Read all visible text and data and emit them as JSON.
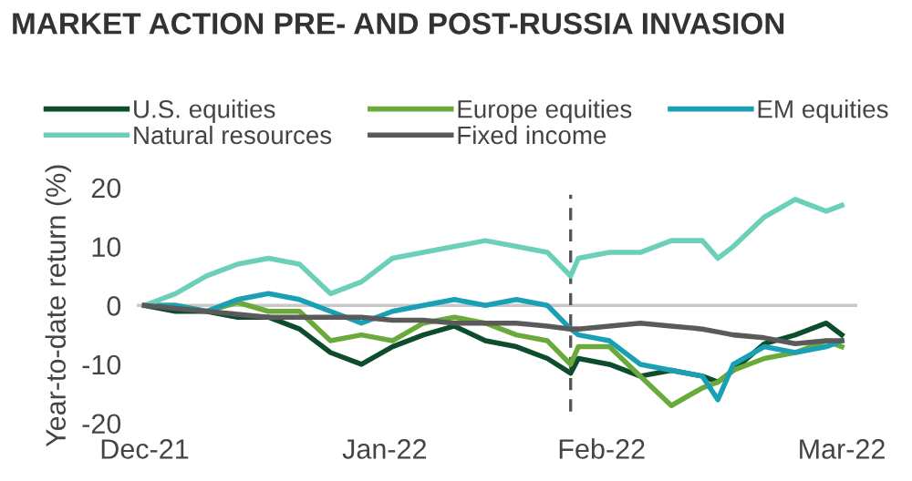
{
  "chart_data": {
    "type": "line",
    "title": "MARKET ACTION PRE- AND POST-RUSSIA INVASION",
    "ylabel": "Year-to-date return (%)",
    "x": [
      "2021-12-31",
      "2022-01-04",
      "2022-01-08",
      "2022-01-12",
      "2022-01-16",
      "2022-01-20",
      "2022-01-24",
      "2022-01-28",
      "2022-02-01",
      "2022-02-05",
      "2022-02-09",
      "2022-02-13",
      "2022-02-17",
      "2022-02-21",
      "2022-02-24",
      "2022-02-25",
      "2022-03-01",
      "2022-03-05",
      "2022-03-09",
      "2022-03-13",
      "2022-03-15",
      "2022-03-17",
      "2022-03-21",
      "2022-03-25",
      "2022-03-29",
      "2022-03-31"
    ],
    "series": [
      {
        "name": "U.S. equities",
        "color": "#0d4d2e",
        "values": [
          0,
          -1,
          -1,
          -2,
          -2,
          -4,
          -8,
          -10,
          -7,
          -5,
          -3.5,
          -6,
          -7,
          -9,
          -11.5,
          -9,
          -10,
          -12,
          -11,
          -12,
          -13,
          -11,
          -6.5,
          -5,
          -3,
          -5
        ]
      },
      {
        "name": "Europe equities",
        "color": "#6aaa3a",
        "values": [
          0,
          0,
          -1,
          0.5,
          -1,
          -1,
          -6,
          -5,
          -6,
          -3,
          -2,
          -3,
          -5,
          -6,
          -10,
          -7,
          -7,
          -12,
          -17,
          -14,
          -13,
          -11,
          -9,
          -8,
          -6,
          -7
        ]
      },
      {
        "name": "EM equities",
        "color": "#1aa0b4",
        "values": [
          0,
          0,
          -1,
          1,
          2,
          1,
          -1,
          -3,
          -1,
          0,
          1,
          0,
          1,
          0,
          -4,
          -5,
          -6,
          -10,
          -11,
          -12,
          -16,
          -10,
          -7,
          -8,
          -7,
          -6
        ]
      },
      {
        "name": "Natural resources",
        "color": "#6cd0b8",
        "values": [
          0,
          2,
          5,
          7,
          8,
          7,
          2,
          4,
          8,
          9,
          10,
          11,
          10,
          9,
          5,
          8,
          9,
          9,
          11,
          11,
          8,
          10,
          15,
          18,
          16,
          17
        ]
      },
      {
        "name": "Fixed income",
        "color": "#5a5a5a",
        "values": [
          0,
          -0.5,
          -1,
          -1.5,
          -2,
          -2,
          -2,
          -2,
          -2.5,
          -2.5,
          -3,
          -3,
          -3,
          -3.5,
          -4,
          -4,
          -3.5,
          -3,
          -3.5,
          -4,
          -4.5,
          -5,
          -5.5,
          -6.5,
          -6,
          -6
        ]
      }
    ],
    "xlim": [
      "2021-12-30",
      "2022-04-02"
    ],
    "ylim": [
      -20,
      20
    ],
    "xticks": [
      {
        "value": "2021-12-31",
        "label": "Dec-21"
      },
      {
        "value": "2022-01-31",
        "label": "Jan-22"
      },
      {
        "value": "2022-02-28",
        "label": "Feb-22"
      },
      {
        "value": "2022-03-31",
        "label": "Mar-22"
      }
    ],
    "yticks": [
      -20,
      -10,
      0,
      10,
      20
    ],
    "ref_lines": [
      {
        "axis": "y",
        "value": 0,
        "color": "#c8c8c8",
        "line_style": "solid"
      },
      {
        "axis": "x",
        "value": "2022-02-24",
        "color": "#555555",
        "line_style": "dashed"
      }
    ],
    "legend": "top",
    "grid": false,
    "marker": "none",
    "line_style": "solid"
  }
}
